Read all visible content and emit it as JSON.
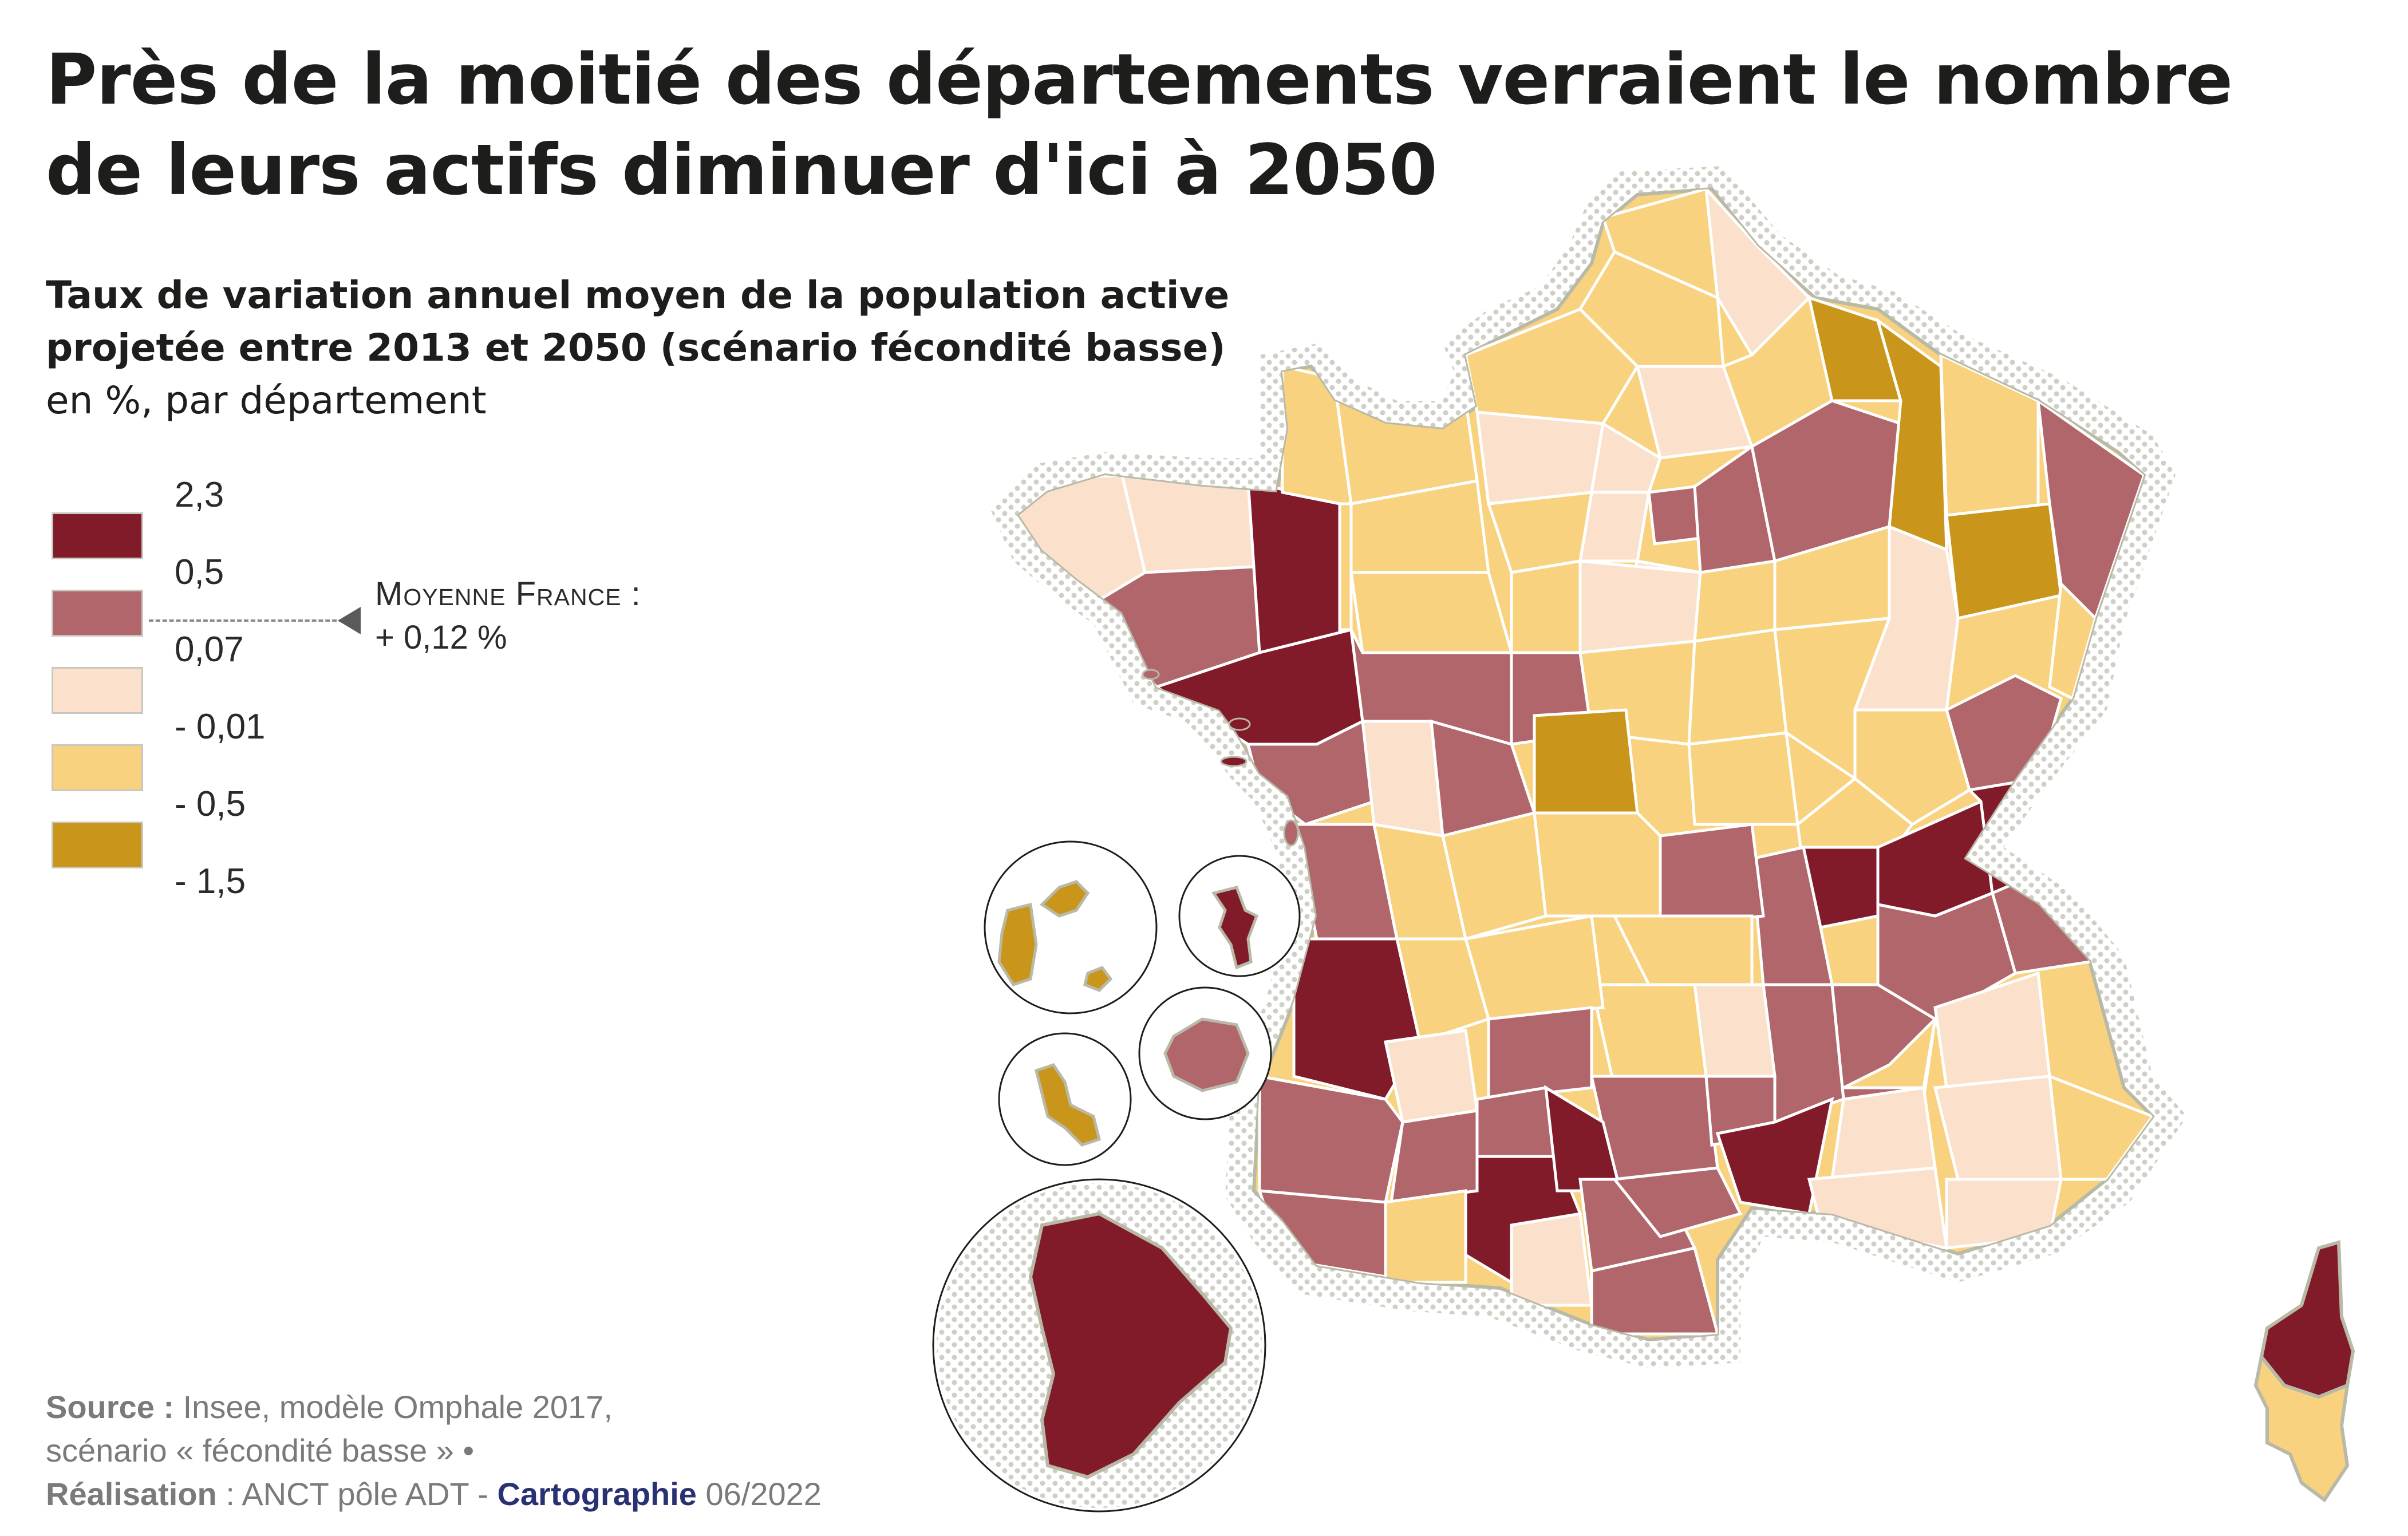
{
  "title": "Près de la moitié des départements verraient le nombre de leurs actifs diminuer d'ici à 2050",
  "subtitle": "Taux de variation annuel moyen de la population active projetée entre 2013 et 2050 (scénario fécondité basse)",
  "unit_line": "en %, par département",
  "legend": {
    "classes": [
      {
        "from": "0,5",
        "to": "2,3",
        "color": "#811a29"
      },
      {
        "from": "0,07",
        "to": "0,5",
        "color": "#b0666b"
      },
      {
        "from": "- 0,01",
        "to": "0,07",
        "color": "#fbe1cc"
      },
      {
        "from": "- 0,5",
        "to": "- 0,01",
        "color": "#f8d27e"
      },
      {
        "from": "- 1,5",
        "to": "- 0,5",
        "color": "#c9961b"
      }
    ],
    "ticks": [
      "2,3",
      "0,5",
      "0,07",
      "- 0,01",
      "- 0,5",
      "- 1,5"
    ],
    "average_label": "Moyenne France :",
    "average_value": "+ 0,12 %",
    "average_numeric": 0.12
  },
  "credits": {
    "source_label": "Source :",
    "source_text": "Insee, modèle Omphale 2017,",
    "source_text2": "scénario « fécondité basse » •",
    "realisation_label": "Réalisation",
    "realisation_text": ": ANCT pôle ADT -",
    "brand": "Cartographie",
    "date": "06/2022"
  },
  "colors": {
    "dark_red": "#811a29",
    "rose": "#b0666b",
    "light_peach": "#fbe1cc",
    "light_yellow": "#f8d27e",
    "ochre": "#c9961b",
    "border": "#ffffff",
    "coast": "#b9b9a8"
  }
}
